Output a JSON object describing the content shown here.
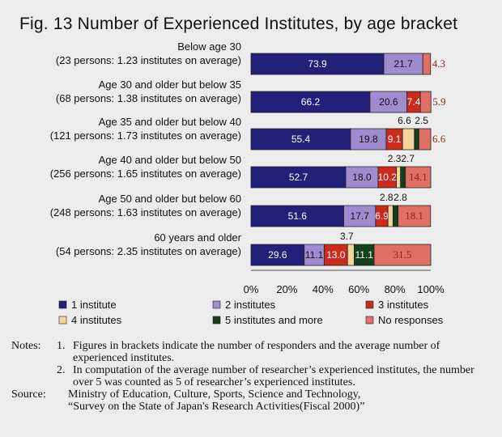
{
  "title": "Fig. 13  Number of Experienced Institutes, by age bracket",
  "colors": {
    "1 institute": "#24207a",
    "2 institutes": "#9f8cd0",
    "3 institutes": "#cc2a1c",
    "4 institutes": "#f4d49a",
    "5 institutes and more": "#14401c",
    "No responses": "#e07066"
  },
  "chart_data": {
    "type": "bar",
    "orientation": "horizontal",
    "stacked": true,
    "xlim": [
      0,
      100
    ],
    "x_ticks": [
      "0%",
      "20%",
      "40%",
      "60%",
      "80%",
      "100%"
    ],
    "categories": [
      [
        "Below age 30",
        "(23 persons: 1.23 institutes on average)"
      ],
      [
        "Age 30 and older but below 35",
        "(68 persons: 1.38 institutes on average)"
      ],
      [
        "Age 35 and older but below 40",
        "(121 persons: 1.73 institutes on average)"
      ],
      [
        "Age 40 and older but below 50",
        "(256 persons: 1.65 institutes on average)"
      ],
      [
        "Age 50 and older but below 60",
        "(248 persons: 1.63 institutes on average)"
      ],
      [
        "60 years and older",
        "(54 persons: 2.35 institutes on average)"
      ]
    ],
    "series": [
      {
        "name": "1 institute",
        "values": [
          73.9,
          66.2,
          55.4,
          52.7,
          51.6,
          29.6
        ]
      },
      {
        "name": "2 institutes",
        "values": [
          21.7,
          20.6,
          19.8,
          18.0,
          17.7,
          11.1
        ]
      },
      {
        "name": "3 institutes",
        "values": [
          0,
          7.4,
          9.1,
          10.2,
          6.9,
          13.0
        ]
      },
      {
        "name": "4 institutes",
        "values": [
          0,
          0,
          6.6,
          2.3,
          2.8,
          3.7
        ]
      },
      {
        "name": "5 institutes and more",
        "values": [
          0,
          0,
          2.5,
          2.7,
          2.8,
          11.1
        ]
      },
      {
        "name": "No responses",
        "values": [
          4.3,
          5.9,
          6.6,
          14.1,
          18.1,
          31.5
        ]
      }
    ],
    "data_labels": [
      [
        "73.9",
        "21.7",
        "",
        "",
        "",
        "4.3"
      ],
      [
        "66.2",
        "20.6",
        "7.4",
        "",
        "",
        "5.9"
      ],
      [
        "55.4",
        "19.8",
        "9.1",
        "6.6",
        "2.5",
        "6.6"
      ],
      [
        "52.7",
        "18.0",
        "10.2",
        "2.3",
        "2.7",
        "14.1"
      ],
      [
        "51.6",
        "17.7",
        "6.9",
        "2.8",
        "2.8",
        "18.1"
      ],
      [
        "29.6",
        "11.1",
        "13.0",
        "3.7",
        "11.1",
        "31.5"
      ]
    ]
  },
  "notes": {
    "label": "Notes:",
    "items": [
      {
        "num": "1.",
        "text": "Figures in brackets indicate the number of responders and the average number of experienced institutes."
      },
      {
        "num": "2.",
        "text": "In computation of the average number of researcher’s experienced institutes, the number over 5 was counted as 5 of researcher’s experienced institutes."
      }
    ]
  },
  "source": {
    "label": "Source:",
    "lines": [
      "Ministry of Education, Culture, Sports, Science and Technology,",
      "“Survey on the State of Japan's Research Activities(Fiscal 2000)”"
    ]
  }
}
